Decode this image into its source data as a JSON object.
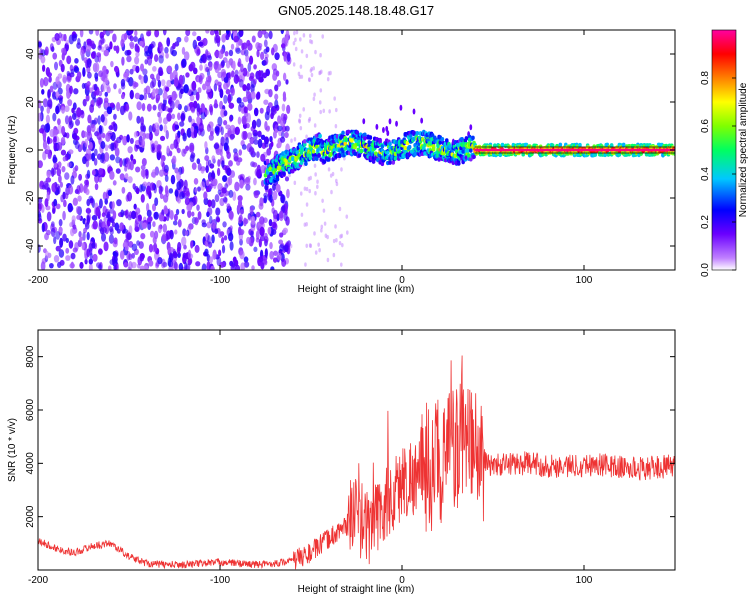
{
  "title": "GN05.2025.148.18.48.G17",
  "chart_data": [
    {
      "type": "heatmap",
      "xlabel": "Height of straight line (km)",
      "ylabel": "Frequency (Hz)",
      "xlim": [
        -200,
        150
      ],
      "ylim": [
        -50,
        50
      ],
      "x_ticks": [
        "-200",
        "-100",
        "0",
        "100"
      ],
      "y_ticks": [
        "-40",
        "-20",
        "0",
        "20",
        "40"
      ],
      "colorbar": {
        "label": "Normalized spectral amplitude",
        "range": [
          0,
          1
        ],
        "ticks": [
          "0.0",
          "0.2",
          "0.4",
          "0.6",
          "0.8"
        ],
        "colormap": "rainbow (white-violet-blue-cyan-green-yellow-red-magenta)"
      },
      "features": {
        "noise_region_km": [
          -200,
          -62
        ],
        "faint_scatter_region_km": [
          -62,
          -30
        ],
        "signal_track_start_km": -75,
        "signal_track_start_frequency_hz": -10,
        "stable_tone_start_km": 40,
        "stable_tone_frequency_hz": 0
      }
    },
    {
      "type": "line",
      "xlabel": "Height of straight line (km)",
      "ylabel": "SNR (10 * v/v)",
      "xlim": [
        -200,
        150
      ],
      "ylim": [
        0,
        9000
      ],
      "x_ticks": [
        "-200",
        "-100",
        "0",
        "100"
      ],
      "y_ticks": [
        "2000",
        "4000",
        "6000",
        "8000"
      ],
      "line_color": "#ee3333",
      "series": [
        {
          "x": [
            -200,
            -190,
            -180,
            -170,
            -160,
            -150,
            -140,
            -130,
            -120,
            -110,
            -100,
            -90,
            -80,
            -70,
            -60,
            -50,
            -40,
            -30,
            -25,
            -20,
            -15,
            -10,
            -5,
            0,
            5,
            10,
            15,
            20,
            25,
            30,
            35,
            40,
            45,
            50,
            60,
            70,
            80,
            90,
            100,
            110,
            120,
            130,
            140,
            150
          ],
          "y": [
            1100,
            800,
            650,
            900,
            1000,
            500,
            250,
            200,
            200,
            250,
            300,
            250,
            200,
            250,
            350,
            650,
            1200,
            1700,
            2200,
            1600,
            1800,
            2400,
            2700,
            3300,
            3500,
            3500,
            3800,
            4000,
            4300,
            4600,
            4600,
            4400,
            4100,
            3900,
            4000,
            4000,
            3900,
            3900,
            3950,
            3950,
            3850,
            3800,
            3850,
            3900
          ]
        }
      ]
    }
  ]
}
